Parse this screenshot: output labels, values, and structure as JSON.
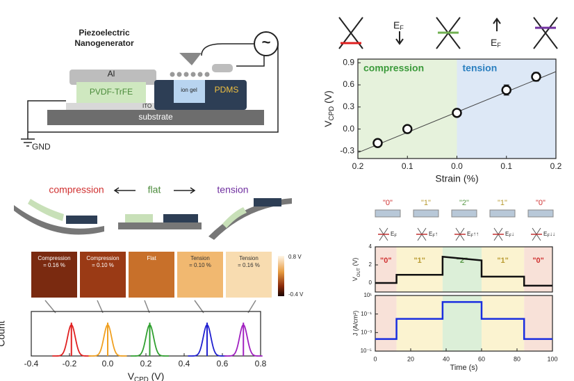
{
  "diagram": {
    "device_title": [
      "Piezoelectric",
      "Nanogenerator"
    ],
    "al": "Al",
    "pvdf": "PVDF-TrFE",
    "ito": "ITO",
    "ion_gel": "ion gel",
    "pdms": "PDMS",
    "substrate": "substrate",
    "gnd": "GND",
    "source": "~",
    "ef_main": "E",
    "ef_sub": "F",
    "bend": [
      "compression",
      "flat",
      "tension"
    ],
    "maps": [
      [
        "Compression",
        "= 0.16 %"
      ],
      [
        "Compression",
        "= 0.10 %"
      ],
      [
        "Flat"
      ],
      [
        "Tension",
        "= 0.10 %"
      ],
      [
        "Tension",
        "= 0.16 %"
      ]
    ],
    "colorbar": [
      "0.8 V",
      "-0.4 V"
    ],
    "states": [
      {
        "label": "\"0\"",
        "color": "#d03030"
      },
      {
        "label": "\"1\"",
        "color": "#b89a30",
        "suffix": "↑"
      },
      {
        "label": "\"2\"",
        "color": "#5a9a4a",
        "suffix": "↑↑"
      },
      {
        "label": "\"1\"",
        "color": "#b89a30",
        "suffix": "↓"
      },
      {
        "label": "\"0\"",
        "color": "#d03030",
        "suffix": "↓↓"
      }
    ]
  },
  "chart_data": [
    {
      "type": "scatter",
      "xlabel": "Strain (%)",
      "ylabel": {
        "main": "V",
        "sub": "CPD",
        "unit": " (V)"
      },
      "x": [
        -0.16,
        -0.1,
        0,
        0.1,
        0.16
      ],
      "values": [
        -0.19,
        0,
        0.22,
        0.53,
        0.71
      ],
      "errors": [
        0.05,
        0.04,
        0.05,
        0.07,
        0.06
      ],
      "xlim": [
        -0.2,
        0.2
      ],
      "ylim": [
        -0.4,
        0.95
      ],
      "xticks": [
        {
          "value": -0.2,
          "label": "0.2"
        },
        {
          "value": -0.1,
          "label": "0.1"
        },
        {
          "value": 0,
          "label": "0.0"
        },
        0.1,
        0.2
      ],
      "yticks": [
        -0.3,
        {
          "value": 0,
          "label": "0.0"
        },
        0.3,
        0.6,
        0.9
      ],
      "fit": {
        "x": [
          -0.2,
          0.2
        ],
        "y": [
          -0.32,
          0.78
        ]
      },
      "regions": [
        {
          "start": -0.2,
          "end": 0,
          "color": "#e6f2dc",
          "label": "compression",
          "label_color": "#3a9a3a"
        },
        {
          "start": 0,
          "end": 0.2,
          "color": "#dde8f6",
          "label": "tension",
          "label_color": "#2a7fc0"
        }
      ]
    },
    {
      "type": "density",
      "xlabel": {
        "main": "V",
        "sub": "CPD",
        "unit": " (V)"
      },
      "ylabel": "Count",
      "values": [
        -0.19,
        0.0,
        0.22,
        0.52,
        0.71
      ],
      "colors": [
        "#e02020",
        "#f0a020",
        "#30a030",
        "#2020d0",
        "#a020c0"
      ],
      "xlim": [
        -0.4,
        0.8
      ],
      "xticks": [
        -0.4,
        -0.2,
        {
          "value": 0,
          "label": "0.0"
        },
        0.2,
        0.4,
        0.6,
        0.8
      ]
    },
    {
      "type": "line",
      "ylabel": {
        "main": "V",
        "sub": "OUT",
        "unit": " (V)"
      },
      "color": "#111",
      "x": [
        0,
        12,
        12,
        38,
        38,
        60,
        60,
        84,
        84,
        100
      ],
      "values": [
        0,
        0,
        0.9,
        0.9,
        2.9,
        2.5,
        0.7,
        0.7,
        -0.3,
        -0.3
      ],
      "xlim": [
        0,
        100
      ],
      "ylim": [
        -1,
        4
      ],
      "yticks": [
        0,
        2,
        4
      ],
      "regions": [
        {
          "start": 0,
          "end": 12,
          "color": "#f8e1d8",
          "label": "\"0\"",
          "label_color": "#d03030"
        },
        {
          "start": 12,
          "end": 38,
          "color": "#fbf3d0",
          "label": "\"1\"",
          "label_color": "#b89a30"
        },
        {
          "start": 38,
          "end": 60,
          "color": "#dcefd8",
          "label": "\"2\"",
          "label_color": "#5a9a4a"
        },
        {
          "start": 60,
          "end": 84,
          "color": "#fbf3d0",
          "label": "\"1\"",
          "label_color": "#b89a30"
        },
        {
          "start": 84,
          "end": 100,
          "color": "#f8e1d8",
          "label": "\"0\"",
          "label_color": "#d03030"
        }
      ]
    },
    {
      "type": "line",
      "log": true,
      "xlabel": "Time (s)",
      "ylabel": "J (A/cm²)",
      "color": "#1a2ee0",
      "x": [
        0,
        12,
        12,
        38,
        38,
        60,
        60,
        84,
        84,
        100
      ],
      "values": [
        0.0002,
        0.0002,
        0.03,
        0.03,
        2,
        2,
        0.03,
        0.03,
        0.0002,
        0.0002
      ],
      "xlim": [
        0,
        100
      ],
      "ylim": [
        1e-05,
        10
      ],
      "xticks": [
        0,
        20,
        40,
        60,
        80,
        100
      ],
      "yticks": [
        {
          "value": 1e-05,
          "label": "10⁻⁵"
        },
        {
          "value": 0.001,
          "label": "10⁻³"
        },
        {
          "value": 0.1,
          "label": "10⁻¹"
        },
        {
          "value": 10,
          "label": "10¹"
        }
      ],
      "regions": [
        {
          "start": 0,
          "end": 12,
          "color": "#f8e1d8"
        },
        {
          "start": 12,
          "end": 38,
          "color": "#fbf3d0"
        },
        {
          "start": 38,
          "end": 60,
          "color": "#dcefd8"
        },
        {
          "start": 60,
          "end": 84,
          "color": "#fbf3d0"
        },
        {
          "start": 84,
          "end": 100,
          "color": "#f8e1d8"
        }
      ]
    }
  ]
}
